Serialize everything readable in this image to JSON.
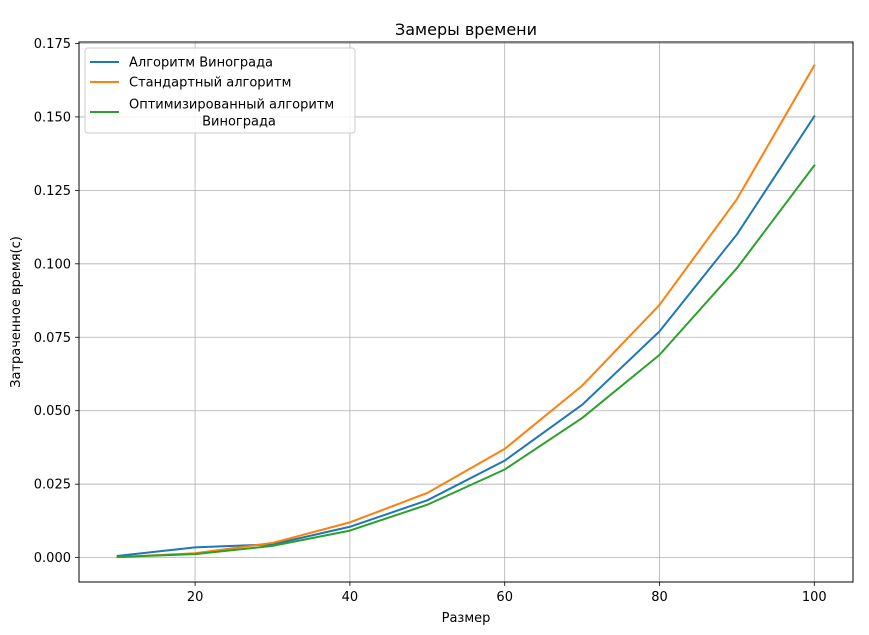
{
  "chart_data": {
    "type": "line",
    "title": "Замеры времени",
    "xlabel": "Размер",
    "ylabel": "Затраченное время(с)",
    "x": [
      10,
      20,
      30,
      40,
      50,
      60,
      70,
      80,
      90,
      100
    ],
    "xlim": [
      5,
      105
    ],
    "ylim": [
      -0.0083,
      0.1755
    ],
    "xticks": [
      20,
      40,
      60,
      80,
      100
    ],
    "yticks": [
      0.0,
      0.025,
      0.05,
      0.075,
      0.1,
      0.125,
      0.15,
      0.175
    ],
    "xtick_labels": [
      "20",
      "40",
      "60",
      "80",
      "100"
    ],
    "ytick_labels": [
      "0.000",
      "0.025",
      "0.050",
      "0.075",
      "0.100",
      "0.125",
      "0.150",
      "0.175"
    ],
    "grid": true,
    "legend_position": "top-left",
    "series": [
      {
        "name": "Алгоритм Винограда",
        "name_lines": [
          "Алгоритм Винограда"
        ],
        "color": "#1f77b4",
        "values": [
          0.0006,
          0.0035,
          0.0045,
          0.0105,
          0.0195,
          0.033,
          0.052,
          0.077,
          0.11,
          0.1502
        ]
      },
      {
        "name": "Стандартный алгоритм",
        "name_lines": [
          "Стандартный алгоритм"
        ],
        "color": "#ff7f0e",
        "values": [
          0.0002,
          0.0015,
          0.005,
          0.012,
          0.022,
          0.037,
          0.0585,
          0.086,
          0.122,
          0.1675
        ]
      },
      {
        "name": "Оптимизированный алгоритм Винограда",
        "name_lines": [
          "Оптимизированный алгоритм",
          "Винограда"
        ],
        "color": "#2ca02c",
        "values": [
          0.0002,
          0.0012,
          0.004,
          0.0092,
          0.018,
          0.03,
          0.0475,
          0.069,
          0.0985,
          0.1335
        ]
      }
    ]
  }
}
